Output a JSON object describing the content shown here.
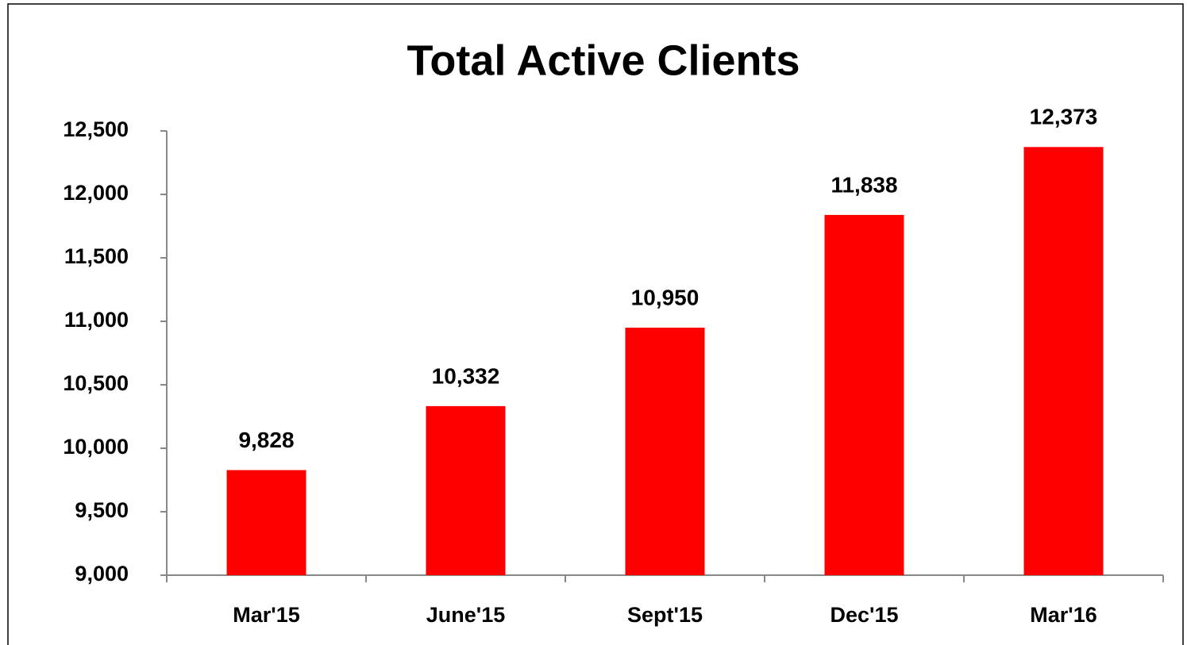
{
  "chart_data": {
    "type": "bar",
    "title": "Total Active Clients",
    "categories": [
      "Mar'15",
      "June'15",
      "Sept'15",
      "Dec'15",
      "Mar'16"
    ],
    "values": [
      9828,
      10332,
      10950,
      11838,
      12373
    ],
    "value_labels": [
      "9,828",
      "10,332",
      "10,950",
      "11,838",
      "12,373"
    ],
    "color": "#ff0000",
    "ylim": [
      9000,
      12500
    ],
    "yticks": [
      {
        "value": 9000,
        "label": "9,000"
      },
      {
        "value": 9500,
        "label": "9,500"
      },
      {
        "value": 10000,
        "label": "10,000"
      },
      {
        "value": 10500,
        "label": "10,500"
      },
      {
        "value": 11000,
        "label": "11,000"
      },
      {
        "value": 11500,
        "label": "11,500"
      },
      {
        "value": 12000,
        "label": "12,000"
      },
      {
        "value": 12500,
        "label": "12,500"
      }
    ],
    "grid": false
  }
}
